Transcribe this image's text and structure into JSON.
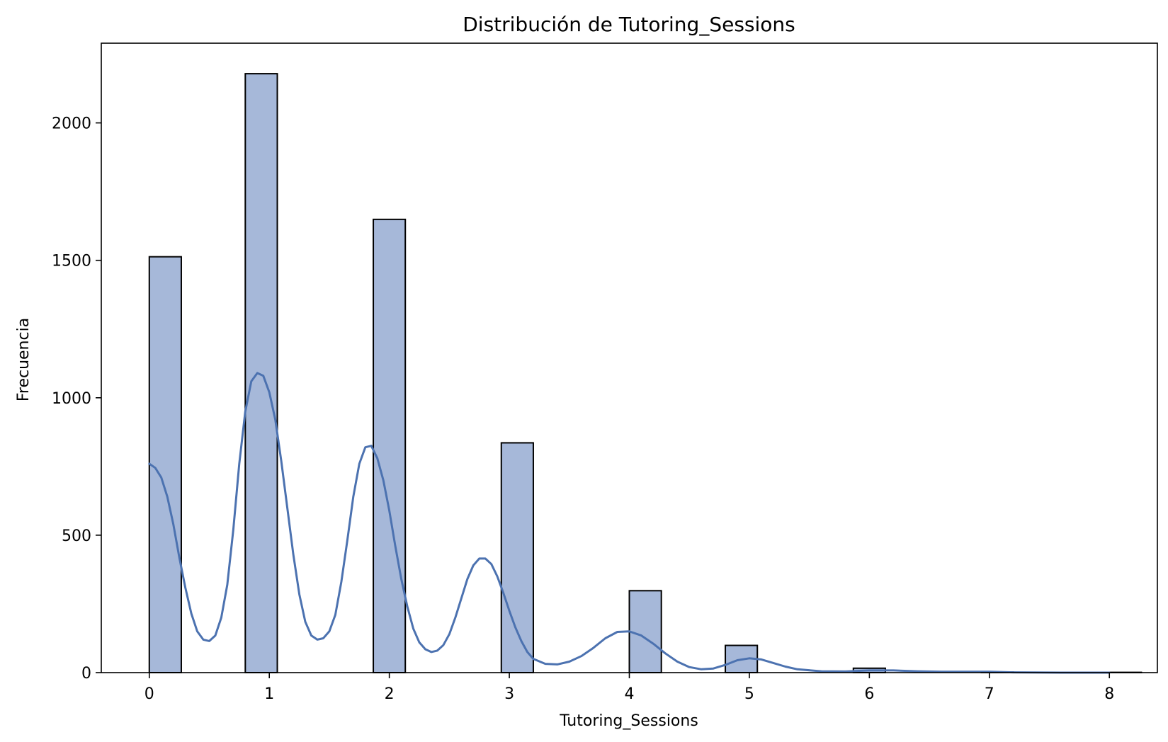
{
  "chart_data": {
    "type": "bar",
    "title": "Distribución de Tutoring_Sessions",
    "xlabel": "Tutoring_Sessions",
    "ylabel": "Frecuencia",
    "xlim": [
      -0.4,
      8.4
    ],
    "ylim": [
      0,
      2290
    ],
    "x_ticks": [
      0,
      1,
      2,
      3,
      4,
      5,
      6,
      7,
      8
    ],
    "y_ticks": [
      0,
      500,
      1000,
      1500,
      2000
    ],
    "grid": false,
    "bar_color": "#a6b8d9",
    "bar_edge_color": "#000000",
    "kde_color": "#4c72b0",
    "bins": [
      {
        "x0": 0.0,
        "x1": 0.2667,
        "count": 1513
      },
      {
        "x0": 0.8,
        "x1": 1.0667,
        "count": 2179
      },
      {
        "x0": 1.8667,
        "x1": 2.1333,
        "count": 1649
      },
      {
        "x0": 2.9333,
        "x1": 3.2,
        "count": 836
      },
      {
        "x0": 4.0,
        "x1": 4.2667,
        "count": 298
      },
      {
        "x0": 4.8,
        "x1": 5.0667,
        "count": 99
      },
      {
        "x0": 5.8667,
        "x1": 6.1333,
        "count": 16
      },
      {
        "x0": 6.9333,
        "x1": 7.2,
        "count": 2
      },
      {
        "x0": 8.0,
        "x1": 8.2667,
        "count": 1
      }
    ],
    "kde": {
      "x": [
        0,
        0.05,
        0.1,
        0.15,
        0.2,
        0.25,
        0.3,
        0.35,
        0.4,
        0.45,
        0.5,
        0.55,
        0.6,
        0.65,
        0.7,
        0.75,
        0.8,
        0.85,
        0.9,
        0.95,
        1.0,
        1.05,
        1.1,
        1.15,
        1.2,
        1.25,
        1.3,
        1.35,
        1.4,
        1.45,
        1.5,
        1.55,
        1.6,
        1.65,
        1.7,
        1.75,
        1.8,
        1.85,
        1.9,
        1.95,
        2.0,
        2.05,
        2.1,
        2.15,
        2.2,
        2.25,
        2.3,
        2.35,
        2.4,
        2.45,
        2.5,
        2.55,
        2.6,
        2.65,
        2.7,
        2.75,
        2.8,
        2.85,
        2.9,
        2.95,
        3.0,
        3.05,
        3.1,
        3.15,
        3.2,
        3.3,
        3.4,
        3.5,
        3.6,
        3.7,
        3.8,
        3.9,
        4.0,
        4.1,
        4.2,
        4.3,
        4.4,
        4.5,
        4.6,
        4.7,
        4.8,
        4.9,
        5.0,
        5.1,
        5.2,
        5.3,
        5.4,
        5.6,
        5.8,
        6.0,
        6.2,
        6.4,
        6.6,
        6.8,
        7.0,
        7.2,
        7.6,
        8.0
      ],
      "y": [
        760,
        745,
        710,
        640,
        540,
        420,
        310,
        215,
        150,
        120,
        115,
        135,
        200,
        320,
        520,
        760,
        950,
        1060,
        1090,
        1080,
        1020,
        920,
        770,
        600,
        430,
        285,
        185,
        135,
        120,
        125,
        150,
        210,
        330,
        480,
        640,
        760,
        820,
        825,
        780,
        700,
        590,
        460,
        340,
        240,
        160,
        110,
        85,
        75,
        80,
        100,
        140,
        200,
        270,
        340,
        390,
        415,
        415,
        395,
        350,
        290,
        225,
        165,
        115,
        75,
        50,
        32,
        30,
        40,
        60,
        90,
        125,
        148,
        150,
        135,
        105,
        70,
        40,
        20,
        12,
        15,
        28,
        45,
        52,
        48,
        35,
        22,
        12,
        5,
        4,
        8,
        8,
        5,
        3,
        3,
        3,
        1,
        0,
        0
      ]
    }
  }
}
